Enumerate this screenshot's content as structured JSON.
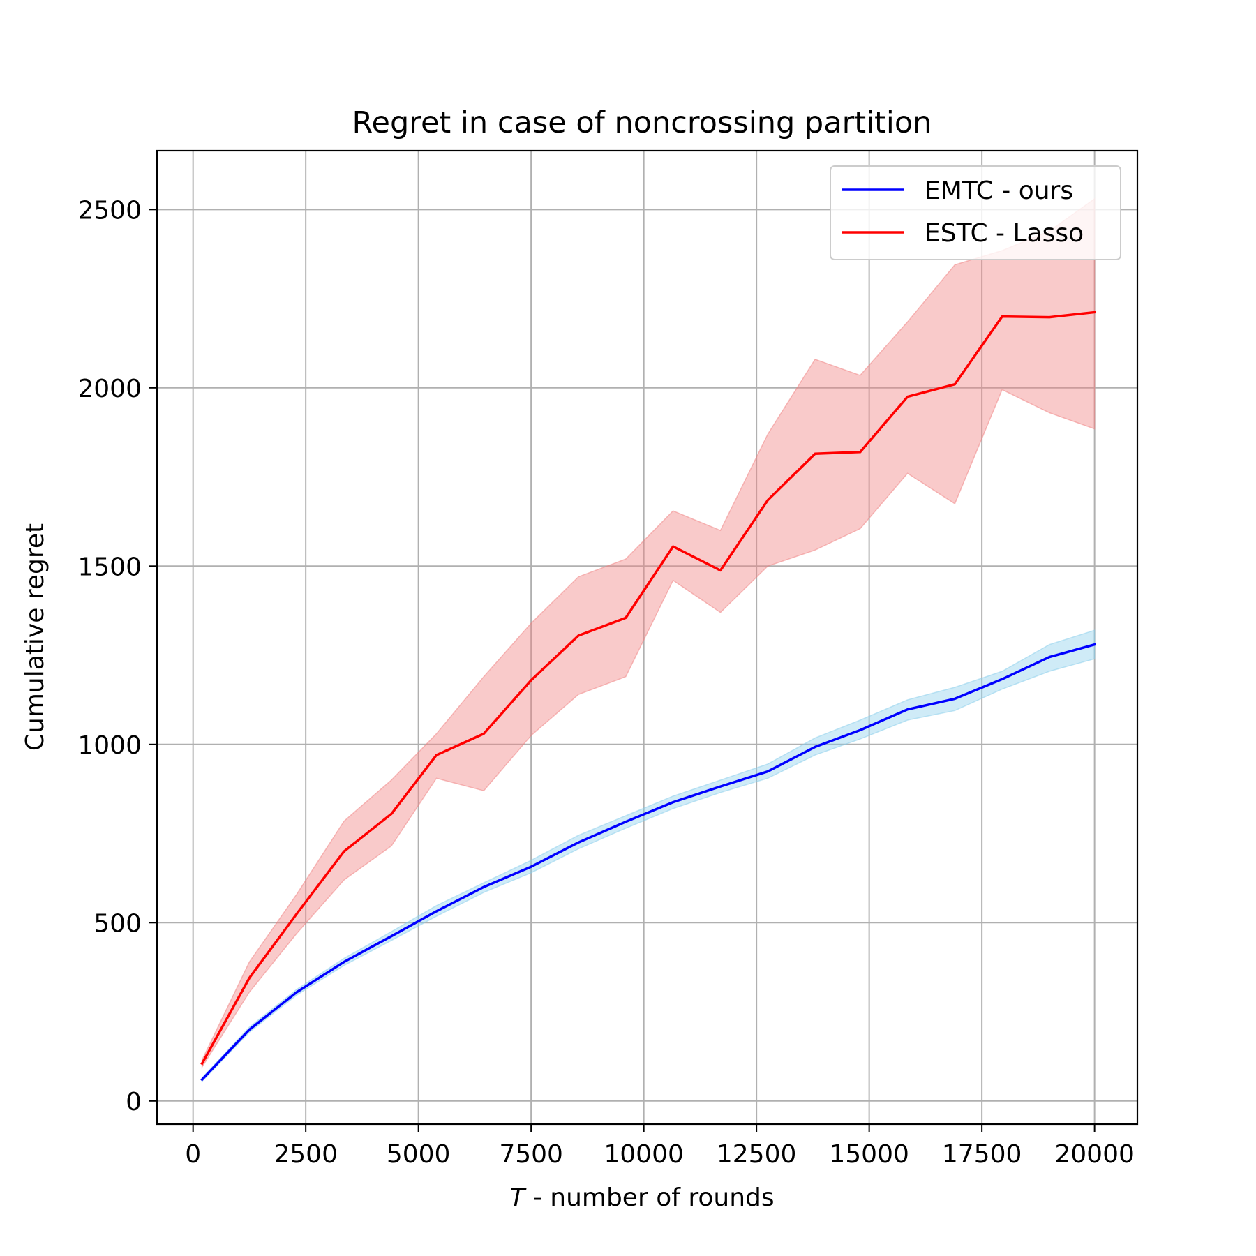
{
  "chart_data": {
    "type": "line",
    "title": "Regret in case of noncrossing partition",
    "xlabel_italic": "T",
    "xlabel_rest": " - number of rounds",
    "ylabel": "Cumulative regret",
    "xlim": [
      -800,
      20950
    ],
    "ylim": [
      -65,
      2665
    ],
    "xticks": [
      0,
      2500,
      5000,
      7500,
      10000,
      12500,
      15000,
      17500,
      20000
    ],
    "yticks": [
      0,
      500,
      1000,
      1500,
      2000,
      2500
    ],
    "grid": true,
    "legend_position": "top-right",
    "x": [
      200,
      1250,
      2300,
      3350,
      4400,
      5400,
      6450,
      7500,
      8550,
      9600,
      10650,
      11700,
      12750,
      13800,
      14800,
      15850,
      16900,
      17950,
      19000,
      20000
    ],
    "series": [
      {
        "name": "EMTC - ours",
        "color": "#0000ff",
        "band_color": "#87ceeb",
        "values": [
          60,
          200,
          305,
          390,
          462,
          532,
          600,
          657,
          725,
          783,
          838,
          882,
          924,
          993,
          1040,
          1098,
          1128,
          1183,
          1245,
          1280
        ],
        "lower": [
          55,
          193,
          297,
          380,
          450,
          518,
          585,
          640,
          707,
          765,
          820,
          865,
          905,
          970,
          1015,
          1068,
          1095,
          1155,
          1205,
          1240
        ],
        "upper": [
          65,
          207,
          313,
          400,
          475,
          548,
          612,
          675,
          745,
          800,
          855,
          900,
          945,
          1018,
          1068,
          1125,
          1160,
          1205,
          1280,
          1320
        ]
      },
      {
        "name": "ESTC - Lasso",
        "color": "#ff0000",
        "band_color": "#f08080",
        "values": [
          105,
          345,
          525,
          700,
          805,
          970,
          1030,
          1180,
          1305,
          1355,
          1555,
          1488,
          1685,
          1815,
          1820,
          1975,
          2010,
          2200,
          2198,
          2212
        ],
        "lower": [
          95,
          305,
          470,
          620,
          715,
          905,
          870,
          1025,
          1140,
          1190,
          1460,
          1370,
          1500,
          1545,
          1605,
          1760,
          1675,
          1995,
          1930,
          1885
        ],
        "upper": [
          115,
          390,
          580,
          785,
          900,
          1030,
          1190,
          1340,
          1470,
          1520,
          1655,
          1600,
          1870,
          2080,
          2035,
          2185,
          2345,
          2385,
          2440,
          2530
        ]
      }
    ]
  }
}
